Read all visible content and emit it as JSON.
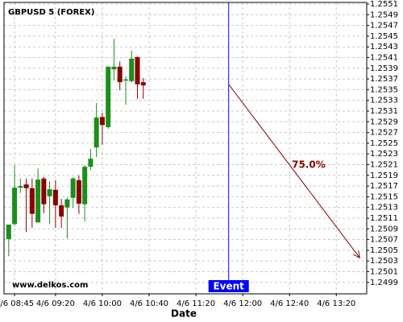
{
  "chart_data": {
    "type": "candlestick",
    "title": "GBPUSD 5 (FOREX)",
    "xlabel": "Date",
    "watermark": "www.delkos.com",
    "x": [
      "4/6 08:40",
      "4/6 08:45",
      "4/6 08:50",
      "4/6 08:55",
      "4/6 09:00",
      "4/6 09:05",
      "4/6 09:10",
      "4/6 09:15",
      "4/6 09:20",
      "4/6 09:25",
      "4/6 09:30",
      "4/6 09:35",
      "4/6 09:40",
      "4/6 09:45",
      "4/6 09:50",
      "4/6 09:55",
      "4/6 10:00",
      "4/6 10:05",
      "4/6 10:10",
      "4/6 10:15",
      "4/6 10:20",
      "4/6 10:25",
      "4/6 10:30",
      "4/6 10:35"
    ],
    "open": [
      1.25071,
      1.25099,
      1.25167,
      1.25173,
      1.25166,
      1.25102,
      1.25184,
      1.25151,
      1.25163,
      1.25134,
      1.2513,
      1.25148,
      1.25181,
      1.25136,
      1.25206,
      1.25242,
      1.25299,
      1.2528,
      1.25388,
      1.25393,
      1.25367,
      1.25366,
      1.25411,
      1.25364
    ],
    "high": [
      1.25098,
      1.25209,
      1.25184,
      1.25184,
      1.25184,
      1.25203,
      1.25187,
      1.25179,
      1.25181,
      1.25146,
      1.25148,
      1.25187,
      1.2519,
      1.25209,
      1.25239,
      1.25325,
      1.25307,
      1.25393,
      1.25445,
      1.25403,
      1.25375,
      1.25423,
      1.25412,
      1.25372
    ],
    "low": [
      1.25039,
      1.25096,
      1.25157,
      1.25084,
      1.25092,
      1.25102,
      1.25119,
      1.25099,
      1.25092,
      1.25092,
      1.25072,
      1.2513,
      1.25118,
      1.25104,
      1.252,
      1.25224,
      1.25247,
      1.25277,
      1.25367,
      1.25349,
      1.25322,
      1.25363,
      1.25333,
      1.25333
    ],
    "close": [
      1.25098,
      1.25167,
      1.2517,
      1.25166,
      1.25118,
      1.25182,
      1.25136,
      1.25164,
      1.25134,
      1.25113,
      1.25145,
      1.25184,
      1.25137,
      1.25206,
      1.25221,
      1.25298,
      1.25284,
      1.25393,
      1.25393,
      1.25364,
      1.25369,
      1.25408,
      1.2536,
      1.25358
    ],
    "up_color": "#1a8f1a",
    "down_color": "#8b0000",
    "xlim": [
      "4/6 08:36",
      "4/6 13:46"
    ],
    "xticks": [
      "4/6 08:45",
      "4/6 09:20",
      "4/6 10:00",
      "4/6 10:40",
      "4/6 11:20",
      "4/6 12:00",
      "4/6 12:40",
      "4/6 13:20"
    ],
    "ylim": [
      1.2497,
      1.2551
    ],
    "yticks": [
      1.2499,
      1.2501,
      1.2503,
      1.2505,
      1.2507,
      1.2509,
      1.2511,
      1.2513,
      1.2515,
      1.2517,
      1.2519,
      1.2521,
      1.2523,
      1.2525,
      1.2527,
      1.2529,
      1.2531,
      1.2533,
      1.2535,
      1.2537,
      1.2539,
      1.2541,
      1.2543,
      1.2545,
      1.2547,
      1.2549,
      1.2551
    ],
    "grid": true,
    "event": {
      "label": "Event",
      "x": "4/6 11:48",
      "color": "#0000ff"
    },
    "forecast": {
      "label": "75.0%",
      "x": [
        "4/6 11:48",
        "4/6 13:40"
      ],
      "y": [
        1.2536,
        1.25036
      ],
      "color": "#8b0000"
    }
  }
}
